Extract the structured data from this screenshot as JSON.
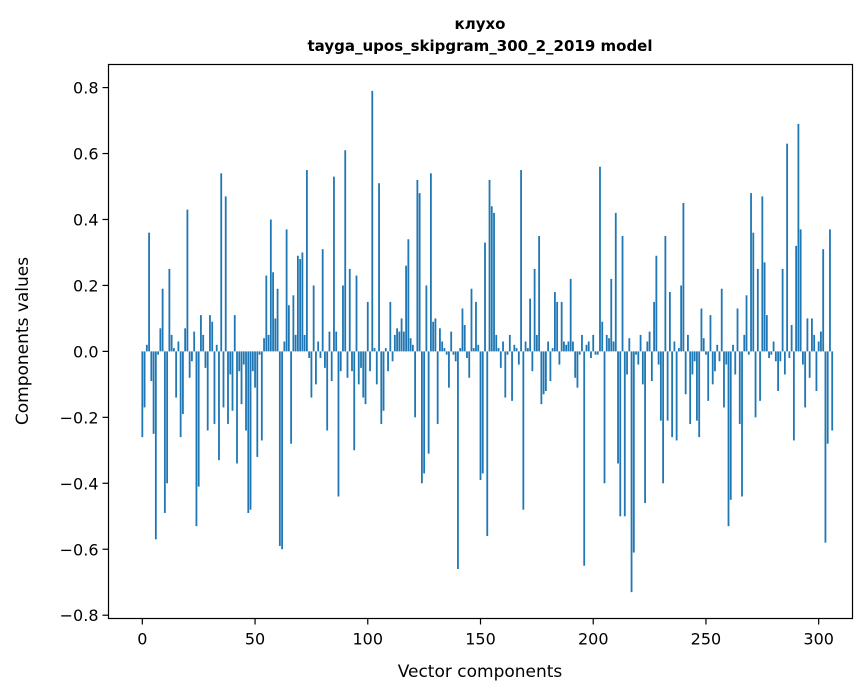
{
  "chart_data": {
    "type": "bar",
    "title": "клухо",
    "subtitle": "tayga_upos_skipgram_300_2_2019 model",
    "xlabel": "Vector components",
    "ylabel": "Components values",
    "xlim": [
      -15,
      315
    ],
    "ylim": [
      -0.81,
      0.87
    ],
    "xticks": [
      0,
      50,
      100,
      150,
      200,
      250,
      300
    ],
    "yticks": [
      0.8,
      0.6,
      0.4,
      0.2,
      0.0,
      -0.2,
      -0.4,
      -0.6,
      -0.8
    ],
    "ytick_labels": [
      "0.8",
      "0.6",
      "0.4",
      "0.2",
      "0.0",
      "−0.2",
      "−0.4",
      "−0.6",
      "−0.8"
    ],
    "grid": false,
    "bar_color": "#1f77b4",
    "values": [
      -0.26,
      -0.17,
      0.02,
      0.36,
      -0.09,
      -0.25,
      -0.57,
      -0.01,
      0.07,
      0.19,
      -0.49,
      -0.4,
      0.25,
      0.05,
      0.01,
      -0.14,
      0.03,
      -0.26,
      -0.19,
      0.07,
      0.43,
      -0.08,
      -0.03,
      0.06,
      -0.53,
      -0.41,
      0.11,
      0.05,
      -0.05,
      -0.24,
      0.11,
      0.09,
      -0.22,
      0.02,
      -0.33,
      0.54,
      -0.17,
      0.47,
      -0.22,
      -0.07,
      -0.18,
      0.11,
      -0.34,
      -0.06,
      -0.16,
      -0.04,
      -0.24,
      -0.49,
      -0.48,
      -0.06,
      -0.11,
      -0.32,
      -0.01,
      -0.27,
      0.04,
      0.23,
      0.05,
      0.4,
      0.24,
      0.1,
      0.19,
      -0.59,
      -0.6,
      0.03,
      0.37,
      0.14,
      -0.28,
      0.17,
      0.05,
      0.29,
      0.28,
      0.3,
      0.05,
      0.55,
      -0.02,
      -0.14,
      0.2,
      -0.1,
      0.03,
      -0.02,
      0.31,
      -0.05,
      -0.24,
      0.06,
      -0.09,
      0.53,
      0.06,
      -0.44,
      -0.06,
      0.2,
      0.61,
      -0.08,
      0.25,
      -0.06,
      -0.3,
      0.23,
      -0.1,
      -0.05,
      -0.14,
      -0.16,
      0.15,
      -0.06,
      0.79,
      0.01,
      -0.1,
      0.51,
      -0.22,
      -0.18,
      0.01,
      -0.06,
      0.15,
      -0.03,
      0.05,
      0.07,
      0.06,
      0.1,
      0.06,
      0.26,
      0.34,
      0.04,
      0.02,
      -0.2,
      0.52,
      0.48,
      -0.4,
      -0.37,
      0.2,
      -0.31,
      0.54,
      0.09,
      0.1,
      -0.22,
      0.07,
      0.03,
      0.01,
      -0.01,
      -0.11,
      0.06,
      -0.01,
      -0.03,
      -0.66,
      0.01,
      0.13,
      0.08,
      -0.02,
      -0.08,
      0.19,
      0.01,
      0.15,
      0.02,
      -0.39,
      -0.37,
      0.33,
      -0.56,
      0.52,
      0.44,
      0.42,
      0.05,
      0.01,
      -0.05,
      0.03,
      -0.14,
      -0.01,
      0.05,
      -0.15,
      0.02,
      0.01,
      -0.04,
      0.55,
      -0.48,
      0.03,
      0.01,
      0.16,
      -0.06,
      0.25,
      0.05,
      0.35,
      -0.16,
      -0.13,
      -0.12,
      0.03,
      -0.09,
      0.01,
      0.18,
      0.15,
      -0.04,
      0.15,
      0.03,
      0.02,
      0.03,
      0.22,
      0.03,
      -0.08,
      -0.11,
      -0.01,
      0.05,
      -0.65,
      0.02,
      0.03,
      -0.02,
      0.05,
      -0.01,
      -0.01,
      0.56,
      0.09,
      -0.4,
      0.05,
      0.04,
      0.22,
      0.03,
      0.42,
      -0.34,
      -0.5,
      0.35,
      -0.5,
      -0.07,
      0.04,
      -0.73,
      -0.61,
      -0.01,
      -0.04,
      0.05,
      -0.1,
      -0.46,
      0.03,
      0.06,
      -0.09,
      0.15,
      0.29,
      -0.04,
      -0.21,
      -0.4,
      0.35,
      -0.21,
      0.18,
      -0.26,
      0.03,
      -0.27,
      0.01,
      0.2,
      0.45,
      -0.13,
      0.05,
      -0.22,
      -0.07,
      -0.03,
      -0.21,
      -0.26,
      0.13,
      0.04,
      -0.01,
      -0.15,
      0.11,
      -0.1,
      -0.06,
      0.02,
      -0.03,
      0.19,
      -0.17,
      -0.04,
      -0.53,
      -0.45,
      0.02,
      -0.07,
      0.13,
      -0.22,
      -0.44,
      0.05,
      0.17,
      -0.01,
      0.48,
      0.36,
      -0.2,
      0.25,
      -0.15,
      0.47,
      0.27,
      0.11,
      -0.02,
      -0.01,
      0.03,
      -0.03,
      -0.12,
      -0.03,
      0.25,
      -0.07,
      0.63,
      -0.02,
      0.08,
      -0.27,
      0.32,
      0.69,
      0.37,
      -0.04,
      -0.17,
      0.1,
      -0.08,
      0.1,
      0.05,
      -0.12,
      0.03,
      0.06,
      0.31,
      -0.58,
      -0.28,
      0.37,
      -0.24
    ]
  }
}
